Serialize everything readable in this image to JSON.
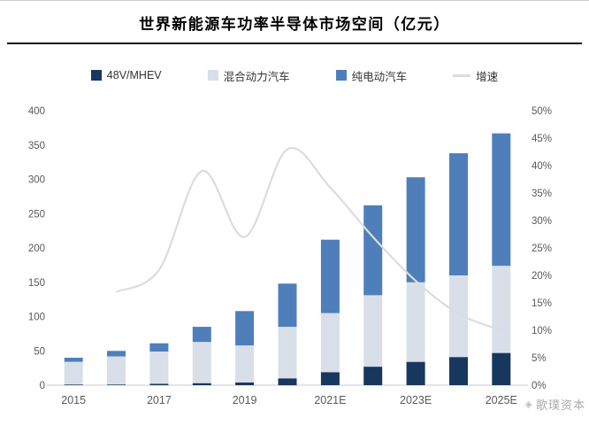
{
  "title": "世界新能源车功率半导体市场空间（亿元）",
  "watermark": "歌璞资本",
  "chart_data": {
    "type": "bar",
    "stacked": true,
    "title": "世界新能源车功率半导体市场空间（亿元）",
    "xlabel": "",
    "ylabel": "",
    "grid": false,
    "legend_position": "top",
    "categories": [
      "2015",
      "2016",
      "2017",
      "2018",
      "2019",
      "2020",
      "2021E",
      "2022E",
      "2023E",
      "2024E",
      "2025E"
    ],
    "x_tick_labels": [
      "2015",
      "2017",
      "2019",
      "2021E",
      "2023E",
      "2025E"
    ],
    "left_axis": {
      "min": 0,
      "max": 400,
      "step": 50
    },
    "right_axis": {
      "min": 0,
      "max": 50,
      "step": 5,
      "suffix": "%"
    },
    "series": [
      {
        "name": "48V/MHEV",
        "type": "bar",
        "color": "#17375E",
        "values": [
          1,
          1,
          2,
          3,
          4,
          10,
          19,
          27,
          34,
          41,
          47
        ]
      },
      {
        "name": "混合动力汽车",
        "type": "bar",
        "color": "#D9DFE8",
        "values": [
          33,
          41,
          47,
          60,
          54,
          75,
          86,
          104,
          116,
          119,
          127
        ]
      },
      {
        "name": "纯电动汽车",
        "type": "bar",
        "color": "#4E7FBA",
        "values": [
          6,
          8,
          12,
          22,
          50,
          63,
          107,
          131,
          153,
          178,
          193
        ]
      },
      {
        "name": "增速",
        "type": "line",
        "axis": "right",
        "color": "#DCDCDC",
        "values": [
          null,
          17,
          21,
          39,
          27,
          43,
          36,
          27,
          19,
          13,
          10
        ]
      }
    ]
  }
}
